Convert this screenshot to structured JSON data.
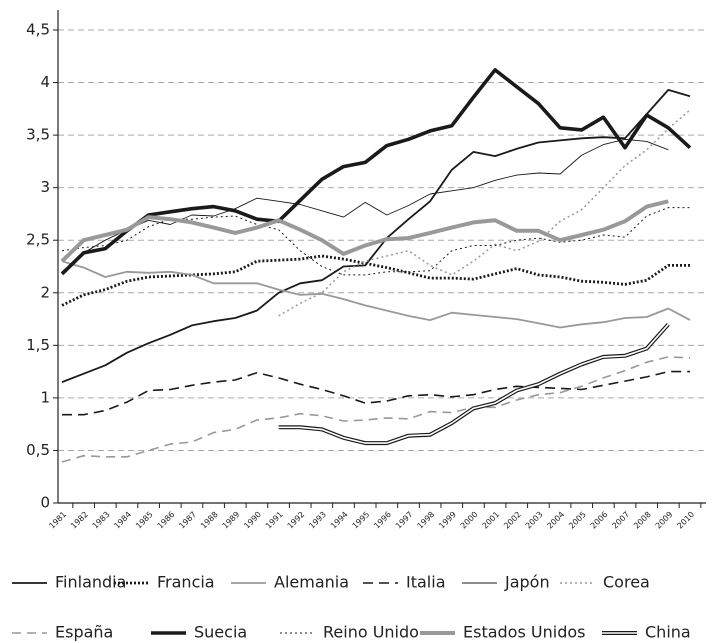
{
  "chart_data": {
    "type": "line",
    "categories": [
      "1981",
      "1982",
      "1983",
      "1984",
      "1985",
      "1986",
      "1987",
      "1988",
      "1989",
      "1990",
      "1991",
      "1992",
      "1993",
      "1994",
      "1995",
      "1996",
      "1997",
      "1998",
      "1999",
      "2000",
      "2001",
      "2002",
      "2003",
      "2004",
      "2005",
      "2006",
      "2007",
      "2008",
      "2009",
      "2010"
    ],
    "ylim": [
      0,
      4.5
    ],
    "yticks": [
      0,
      {
        "value": 0.5,
        "label": "0,5"
      },
      1,
      {
        "value": 1.5,
        "label": "1,5"
      },
      2,
      {
        "value": 2.5,
        "label": "2,5"
      },
      3,
      {
        "value": 3.5,
        "label": "3,5"
      },
      4,
      {
        "value": 4.5,
        "label": "4,5"
      }
    ],
    "grid": true,
    "series": [
      {
        "name": "Finlandia",
        "color": "#1a1a1a",
        "width": 1.8,
        "dash": "none",
        "values": [
          1.15,
          1.23,
          1.31,
          1.43,
          1.52,
          1.6,
          1.69,
          1.73,
          1.76,
          1.83,
          2.0,
          2.09,
          2.12,
          2.25,
          2.26,
          2.52,
          2.7,
          2.87,
          3.17,
          3.34,
          3.3,
          3.37,
          3.43,
          3.45,
          3.47,
          3.48,
          3.47,
          3.7,
          3.93,
          3.87
        ]
      },
      {
        "name": "Francia",
        "color": "#1a1a1a",
        "width": 2.8,
        "dash": "2,2",
        "values": [
          1.88,
          1.98,
          2.03,
          2.11,
          2.15,
          2.16,
          2.17,
          2.18,
          2.2,
          2.3,
          2.31,
          2.32,
          2.35,
          2.32,
          2.28,
          2.24,
          2.19,
          2.14,
          2.14,
          2.13,
          2.18,
          2.23,
          2.17,
          2.15,
          2.11,
          2.1,
          2.08,
          2.12,
          2.26,
          2.26
        ]
      },
      {
        "name": "Alemania",
        "color": "#999999",
        "width": 1.8,
        "dash": "none",
        "values": [
          2.3,
          2.24,
          2.15,
          2.2,
          2.19,
          2.2,
          2.17,
          2.09,
          2.09,
          2.09,
          2.03,
          1.98,
          1.99,
          1.94,
          1.88,
          1.83,
          1.78,
          1.74,
          1.81,
          1.79,
          1.77,
          1.75,
          1.71,
          1.67,
          1.7,
          1.72,
          1.76,
          1.77,
          1.85,
          1.74
        ]
      },
      {
        "name": "Italia",
        "color": "#1a1a1a",
        "width": 1.6,
        "dash": "10,6",
        "values": [
          0.84,
          0.84,
          0.88,
          0.96,
          1.07,
          1.08,
          1.12,
          1.15,
          1.17,
          1.24,
          1.19,
          1.13,
          1.08,
          1.02,
          0.95,
          0.97,
          1.02,
          1.03,
          1.01,
          1.03,
          1.08,
          1.11,
          1.1,
          1.09,
          1.08,
          1.12,
          1.16,
          1.2,
          1.25,
          1.25
        ]
      },
      {
        "name": "Japón",
        "color": "#1a1a1a",
        "width": 0.9,
        "dash": "none",
        "values": [
          2.2,
          2.38,
          2.5,
          2.6,
          2.69,
          2.65,
          2.74,
          2.73,
          2.8,
          2.9,
          2.87,
          2.84,
          2.78,
          2.72,
          2.86,
          2.74,
          2.83,
          2.94,
          2.97,
          3.0,
          3.07,
          3.12,
          3.14,
          3.13,
          3.31,
          3.41,
          3.46,
          3.44,
          3.36,
          null
        ]
      },
      {
        "name": "Corea",
        "color": "#999999",
        "width": 1.5,
        "dash": "2,3",
        "values": [
          null,
          null,
          null,
          null,
          null,
          null,
          null,
          null,
          null,
          null,
          1.78,
          1.9,
          2.0,
          2.2,
          2.3,
          2.35,
          2.4,
          2.26,
          2.17,
          2.3,
          2.46,
          2.4,
          2.49,
          2.68,
          2.79,
          3.0,
          3.21,
          3.36,
          3.56,
          3.74
        ]
      },
      {
        "name": "España",
        "color": "#999999",
        "width": 1.6,
        "dash": "9,6",
        "values": [
          0.39,
          0.45,
          0.44,
          0.44,
          0.5,
          0.56,
          0.58,
          0.67,
          0.7,
          0.79,
          0.81,
          0.85,
          0.83,
          0.78,
          0.79,
          0.81,
          0.8,
          0.87,
          0.86,
          0.91,
          0.91,
          0.98,
          1.03,
          1.05,
          1.11,
          1.19,
          1.26,
          1.34,
          1.39,
          1.38
        ]
      },
      {
        "name": "Suecia",
        "color": "#1a1a1a",
        "width": 3.6,
        "dash": "none",
        "values": [
          2.18,
          2.38,
          2.42,
          2.59,
          2.74,
          2.77,
          2.8,
          2.82,
          2.78,
          2.7,
          2.68,
          2.88,
          3.08,
          3.2,
          3.24,
          3.4,
          3.46,
          3.54,
          3.59,
          3.86,
          4.12,
          3.96,
          3.8,
          3.57,
          3.55,
          3.67,
          3.38,
          3.69,
          3.57,
          3.38
        ]
      },
      {
        "name": "Reino Unido",
        "color": "#1a1a1a",
        "width": 1,
        "dash": "2,3",
        "values": [
          2.4,
          2.43,
          2.45,
          2.5,
          2.63,
          2.7,
          2.7,
          2.72,
          2.73,
          2.65,
          2.6,
          2.4,
          2.25,
          2.17,
          2.17,
          2.2,
          2.2,
          2.21,
          2.4,
          2.45,
          2.45,
          2.5,
          2.52,
          2.48,
          2.5,
          2.55,
          2.53,
          2.73,
          2.81,
          2.81
        ]
      },
      {
        "name": "Estados Unidos",
        "color": "#999999",
        "width": 4,
        "dash": "none",
        "values": [
          2.3,
          2.5,
          2.55,
          2.6,
          2.72,
          2.7,
          2.67,
          2.62,
          2.57,
          2.62,
          2.69,
          2.6,
          2.5,
          2.37,
          2.45,
          2.51,
          2.52,
          2.57,
          2.62,
          2.67,
          2.69,
          2.59,
          2.59,
          2.5,
          2.55,
          2.6,
          2.68,
          2.82,
          2.87,
          null
        ]
      },
      {
        "name": "China",
        "color": "#1a1a1a",
        "width": 4,
        "dash": "double",
        "values": [
          null,
          null,
          null,
          null,
          null,
          null,
          null,
          null,
          null,
          null,
          0.72,
          0.72,
          0.7,
          0.62,
          0.57,
          0.57,
          0.64,
          0.65,
          0.76,
          0.9,
          0.95,
          1.07,
          1.13,
          1.23,
          1.32,
          1.39,
          1.4,
          1.47,
          1.7,
          null
        ]
      }
    ]
  }
}
